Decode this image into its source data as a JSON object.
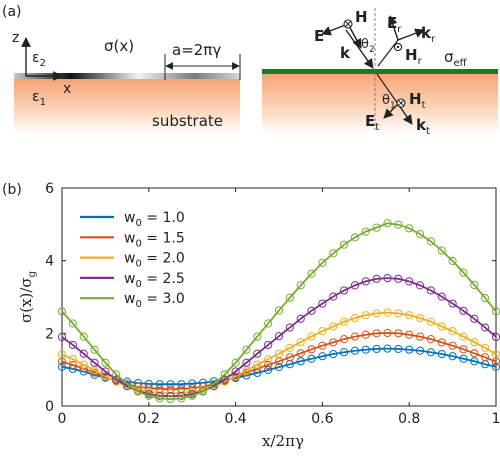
{
  "panel_a": {
    "label": "(a)",
    "axis_z": "z",
    "axis_x": "x",
    "eps_top": "ε",
    "eps_top_sub": "2",
    "eps_bottom": "ε",
    "eps_bottom_sub": "1",
    "sigma_label": "σ(x)",
    "period_label": "a=2πγ",
    "substrate_label": "substrate",
    "sigma_eff": "σ",
    "sigma_eff_sub": "eff",
    "E": "E",
    "H": "H",
    "k": "k",
    "theta2": "θ",
    "theta2_sub": "2",
    "theta1": "θ",
    "theta1_sub": "1",
    "Er": "E",
    "Hr": "H",
    "kr": "k",
    "sub_r": "r",
    "Et": "E",
    "Ht": "H",
    "kt": "k",
    "sub_t": "t",
    "colors": {
      "substrate_top": "#f7a77a",
      "film_green": "#1e7a1e"
    }
  },
  "panel_b": {
    "label": "(b)",
    "xlabel": "x/2πγ",
    "ylabel": "σ(x)/σ",
    "ylabel_sub": "g"
  },
  "chart_data": {
    "type": "line",
    "xlim": [
      0,
      1
    ],
    "ylim": [
      0,
      6
    ],
    "x_ticks": [
      "0",
      "0.2",
      "0.4",
      "0.6",
      "0.8",
      "1"
    ],
    "y_ticks": [
      "0",
      "2",
      "4",
      "6"
    ],
    "grid": false,
    "legend_position": "top-left",
    "x": [
      0,
      0.025,
      0.05,
      0.075,
      0.1,
      0.125,
      0.15,
      0.175,
      0.2,
      0.225,
      0.25,
      0.275,
      0.3,
      0.325,
      0.35,
      0.375,
      0.4,
      0.425,
      0.45,
      0.475,
      0.5,
      0.525,
      0.55,
      0.575,
      0.6,
      0.625,
      0.65,
      0.675,
      0.7,
      0.725,
      0.75,
      0.775,
      0.8,
      0.825,
      0.85,
      0.875,
      0.9,
      0.925,
      0.95,
      0.975,
      1
    ],
    "series": [
      {
        "name": "w 0 = 1.0",
        "legend_prefix": "w",
        "legend_sub": "0",
        "legend_value": " = 1.0",
        "color": "#0072bd",
        "values": [
          1.08,
          1.02,
          0.95,
          0.86,
          0.78,
          0.72,
          0.67,
          0.63,
          0.61,
          0.6,
          0.6,
          0.6,
          0.62,
          0.64,
          0.68,
          0.72,
          0.77,
          0.84,
          0.91,
          0.99,
          1.07,
          1.15,
          1.23,
          1.3,
          1.37,
          1.43,
          1.48,
          1.52,
          1.55,
          1.57,
          1.58,
          1.57,
          1.55,
          1.52,
          1.48,
          1.43,
          1.37,
          1.3,
          1.23,
          1.15,
          1.08
        ]
      },
      {
        "name": "w 0 = 1.5",
        "legend_prefix": "w",
        "legend_sub": "0",
        "legend_value": " = 1.5",
        "color": "#d95319",
        "values": [
          1.22,
          1.13,
          1.03,
          0.92,
          0.8,
          0.69,
          0.6,
          0.53,
          0.49,
          0.47,
          0.46,
          0.47,
          0.49,
          0.53,
          0.6,
          0.69,
          0.8,
          0.92,
          1.03,
          1.13,
          1.23,
          1.34,
          1.45,
          1.56,
          1.66,
          1.75,
          1.84,
          1.91,
          1.96,
          2.0,
          2.01,
          2.0,
          1.96,
          1.91,
          1.84,
          1.75,
          1.66,
          1.56,
          1.45,
          1.34,
          1.22
        ]
      },
      {
        "name": "w 0 = 2.0",
        "legend_prefix": "w",
        "legend_sub": "0",
        "legend_value": " = 2.0",
        "color": "#edb120",
        "values": [
          1.42,
          1.29,
          1.14,
          0.98,
          0.82,
          0.67,
          0.54,
          0.45,
          0.39,
          0.36,
          0.35,
          0.36,
          0.39,
          0.45,
          0.54,
          0.67,
          0.82,
          0.98,
          1.14,
          1.29,
          1.44,
          1.6,
          1.76,
          1.91,
          2.06,
          2.19,
          2.32,
          2.42,
          2.5,
          2.55,
          2.57,
          2.55,
          2.5,
          2.42,
          2.32,
          2.19,
          2.06,
          1.91,
          1.76,
          1.6,
          1.42
        ]
      },
      {
        "name": "w 0 = 2.5",
        "legend_prefix": "w",
        "legend_sub": "0",
        "legend_value": " = 2.5",
        "color": "#7e2f8e",
        "values": [
          1.9,
          1.68,
          1.44,
          1.19,
          0.95,
          0.73,
          0.55,
          0.41,
          0.33,
          0.28,
          0.27,
          0.28,
          0.33,
          0.41,
          0.55,
          0.73,
          0.95,
          1.19,
          1.44,
          1.68,
          1.92,
          2.16,
          2.4,
          2.62,
          2.82,
          3.01,
          3.18,
          3.32,
          3.43,
          3.5,
          3.52,
          3.5,
          3.43,
          3.32,
          3.18,
          3.01,
          2.82,
          2.62,
          2.4,
          2.16,
          1.9
        ]
      },
      {
        "name": "w 0 = 3.0",
        "legend_prefix": "w",
        "legend_sub": "0",
        "legend_value": " = 3.0",
        "color": "#77ac30",
        "values": [
          2.6,
          2.27,
          1.91,
          1.55,
          1.19,
          0.87,
          0.6,
          0.4,
          0.28,
          0.21,
          0.19,
          0.21,
          0.28,
          0.4,
          0.6,
          0.87,
          1.19,
          1.55,
          1.91,
          2.27,
          2.63,
          2.98,
          3.32,
          3.64,
          3.94,
          4.2,
          4.44,
          4.64,
          4.8,
          4.91,
          5.03,
          4.99,
          4.89,
          4.73,
          4.53,
          4.28,
          3.99,
          3.67,
          3.33,
          2.97,
          2.6
        ]
      }
    ]
  }
}
